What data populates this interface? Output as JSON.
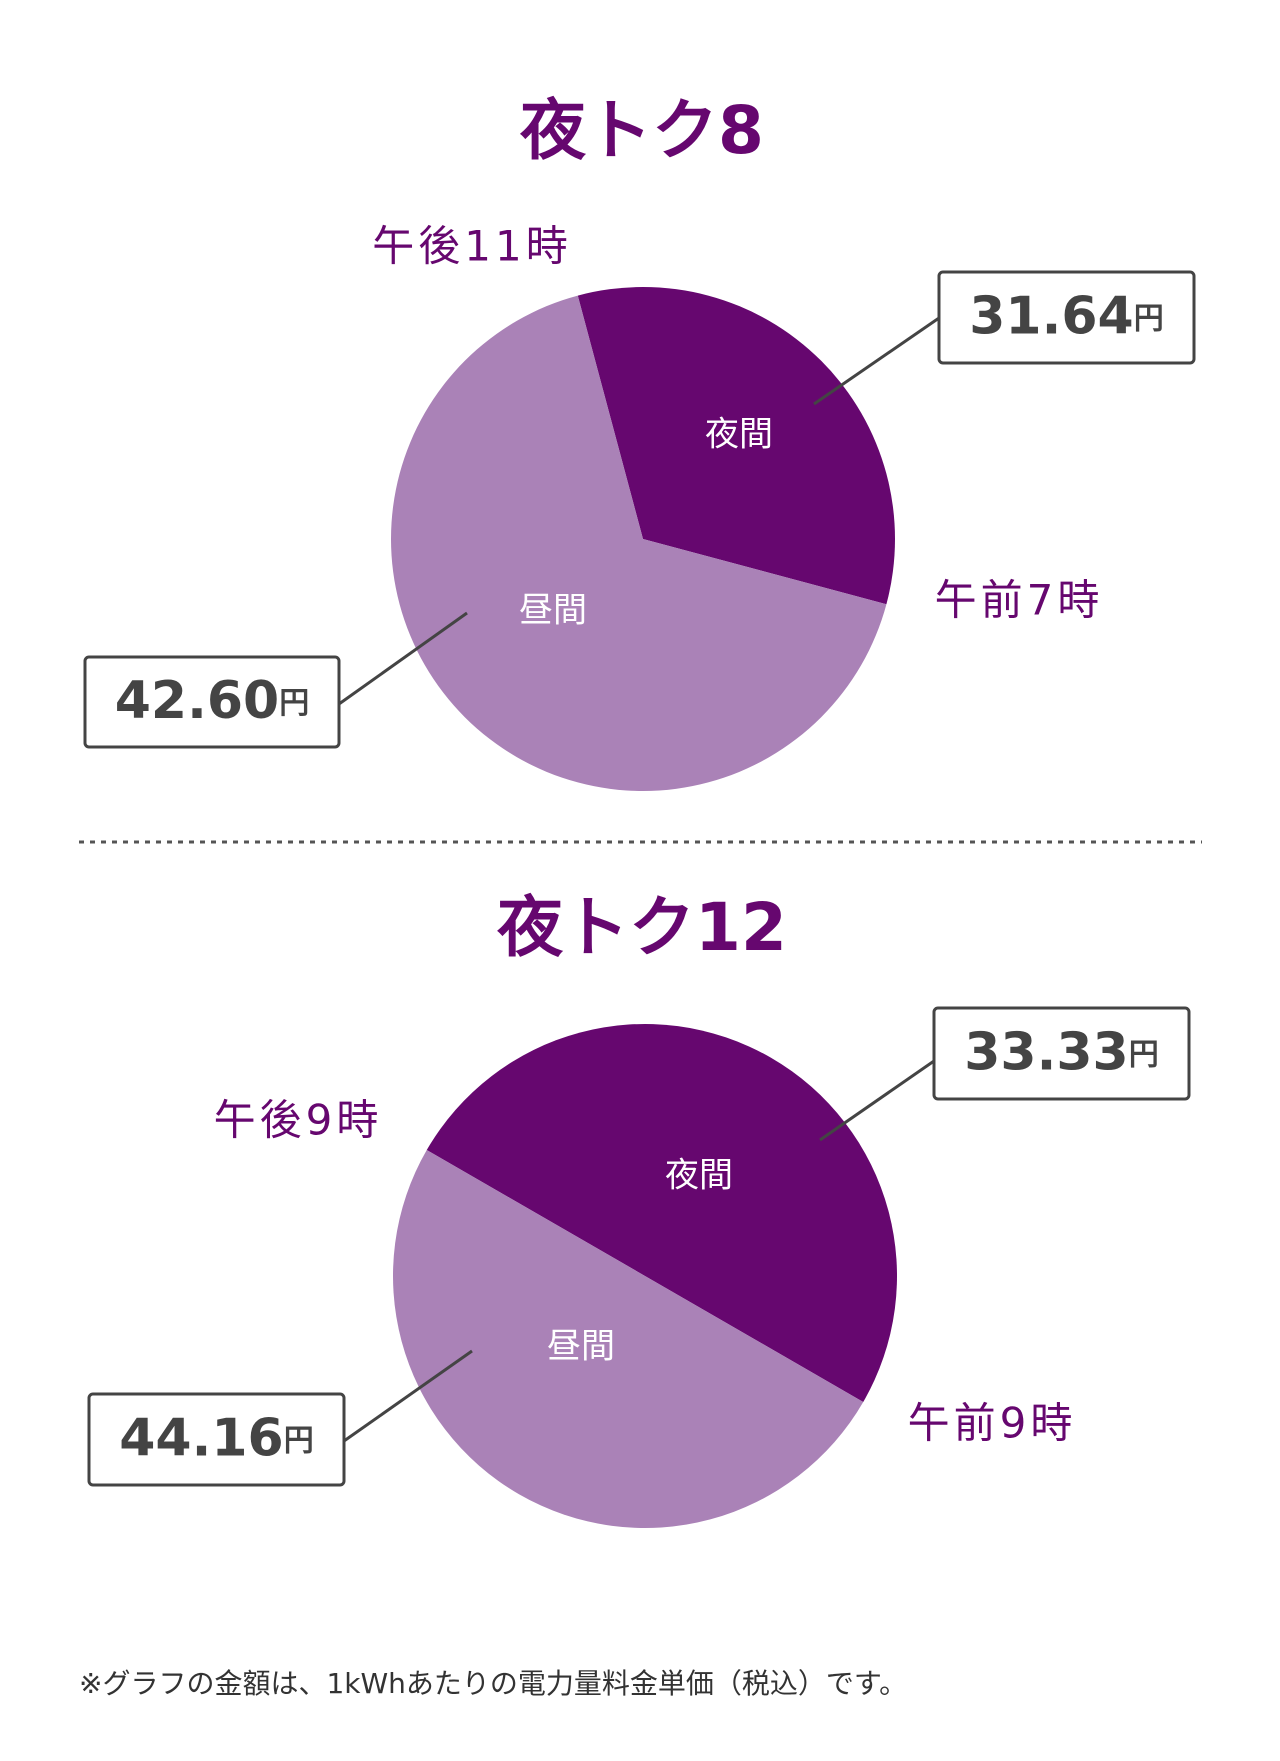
{
  "chart_data": [
    {
      "type": "pie",
      "title": "夜トク8",
      "categories": [
        "夜間",
        "昼間"
      ],
      "values": [
        8,
        16
      ],
      "colors": [
        "#66076f",
        "#aa82b7"
      ],
      "boundary_labels": [
        "午後11時",
        "午前7時"
      ],
      "callouts": [
        {
          "amount": "31.64",
          "unit": "円"
        },
        {
          "amount": "42.60",
          "unit": "円"
        }
      ]
    },
    {
      "type": "pie",
      "title": "夜トク12",
      "categories": [
        "夜間",
        "昼間"
      ],
      "values": [
        12,
        12
      ],
      "colors": [
        "#66076f",
        "#aa82b7"
      ],
      "boundary_labels": [
        "午後9時",
        "午前9時"
      ],
      "callouts": [
        {
          "amount": "33.33",
          "unit": "円"
        },
        {
          "amount": "44.16",
          "unit": "円"
        }
      ]
    }
  ],
  "footnote": "※グラフの金額は、1kWhあたりの電力量料金単価（税込）です。"
}
